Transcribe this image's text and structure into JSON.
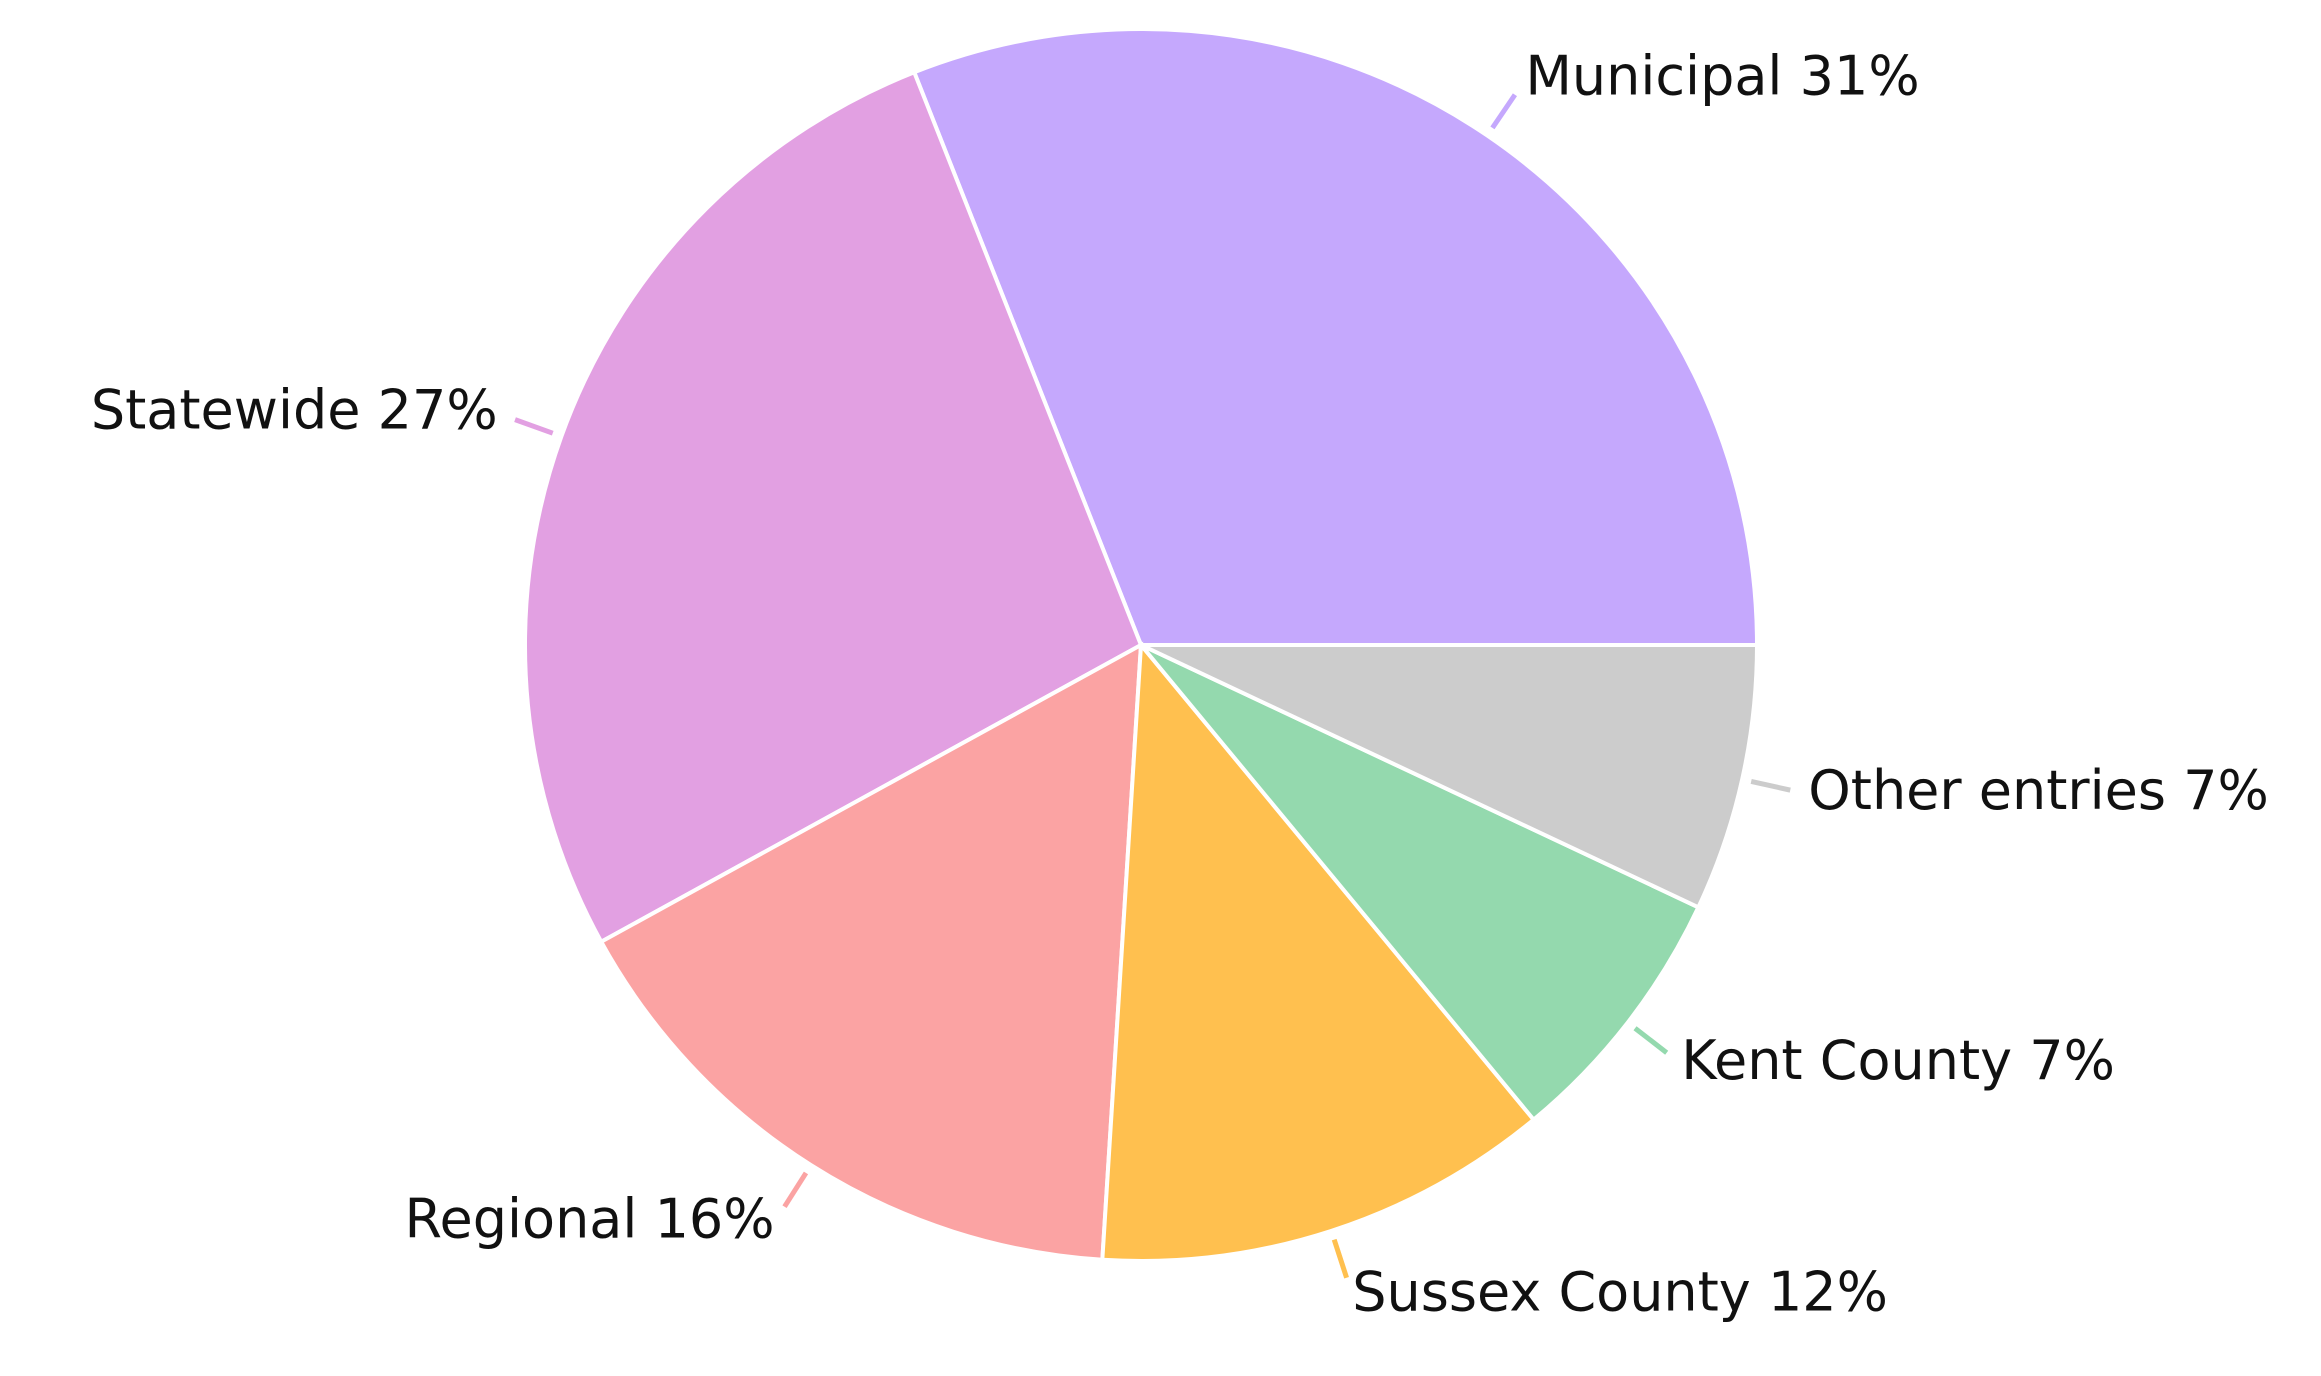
{
  "chart_data": {
    "type": "pie",
    "categories": [
      "Municipal",
      "Statewide",
      "Regional",
      "Sussex County",
      "Kent County",
      "Other entries"
    ],
    "values": [
      31,
      27,
      16,
      12,
      7,
      7
    ],
    "value_labels": [
      "31%",
      "27%",
      "16%",
      "12%",
      "7%",
      "7%"
    ],
    "colors": [
      "#c5a8fd",
      "#e2a0e2",
      "#fba3a3",
      "#ffc04f",
      "#94d9ae",
      "#cccccc"
    ]
  }
}
